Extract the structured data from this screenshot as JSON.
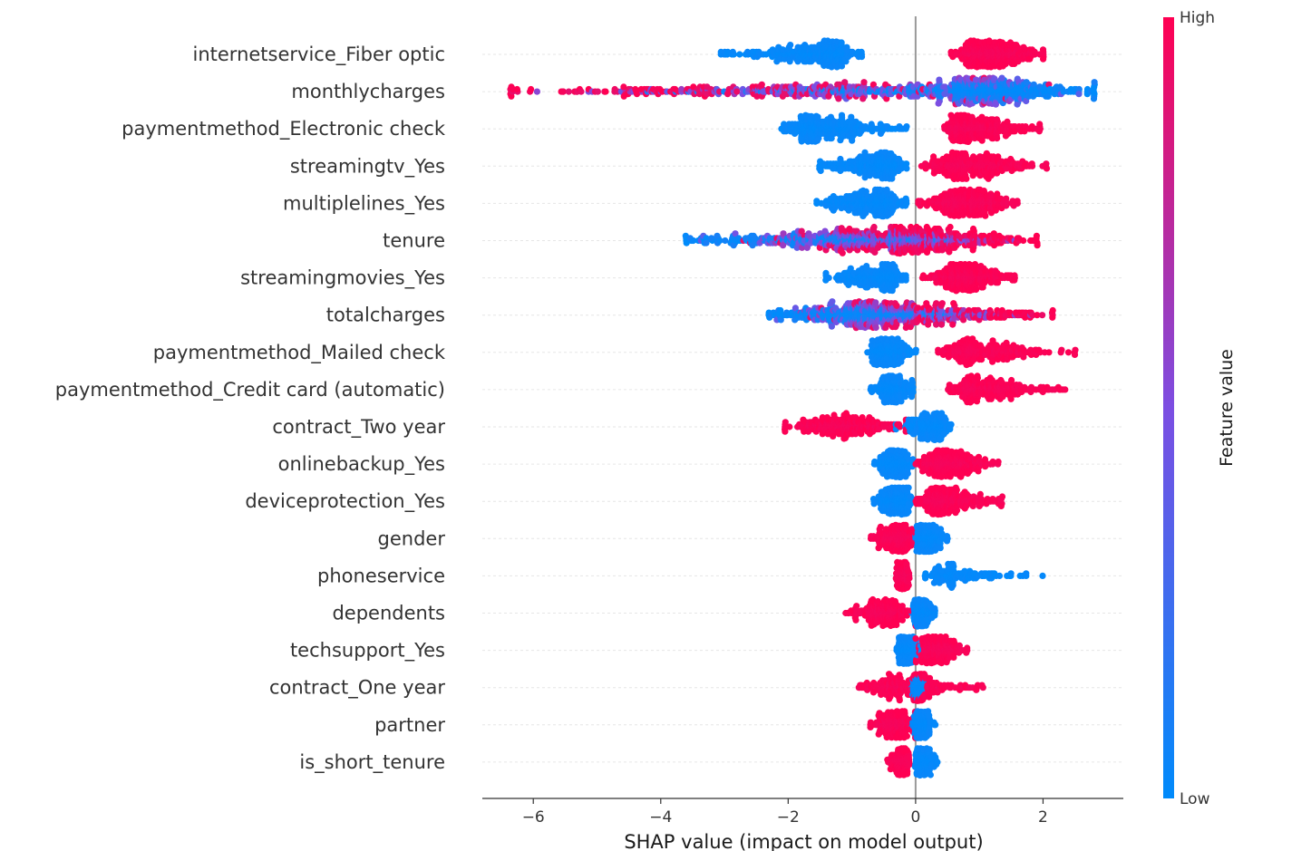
{
  "chart_data": {
    "type": "scatter",
    "subtype": "shap-beeswarm",
    "xlabel": "SHAP value (impact on model output)",
    "xlim": [
      -6.8,
      3.26
    ],
    "xticks": [
      -6,
      -4,
      -2,
      0,
      2
    ],
    "xtick_labels": [
      "−6",
      "−4",
      "−2",
      "0",
      "2"
    ],
    "zero_line": 0,
    "grid": false,
    "colorbar": {
      "title": "Feature value",
      "high_label": "High",
      "low_label": "Low",
      "low_color": "#008bfb",
      "high_color": "#ff0052"
    },
    "features": [
      {
        "name": "internetservice_Fiber optic",
        "type": "binary",
        "low": {
          "min": -3.05,
          "max": -0.85,
          "peak": -1.45,
          "n": 300
        },
        "high": {
          "min": 0.55,
          "max": 2.0,
          "peak": 1.15,
          "n": 330
        }
      },
      {
        "name": "monthlycharges",
        "type": "continuous",
        "min": -6.35,
        "max": 2.8,
        "peak": 0.6,
        "corr": "negative",
        "n": 950
      },
      {
        "name": "paymentmethod_Electronic check",
        "type": "binary",
        "low": {
          "min": -2.1,
          "max": -0.15,
          "peak": -1.5,
          "n": 300
        },
        "high": {
          "min": 0.45,
          "max": 1.95,
          "peak": 0.85,
          "n": 310
        }
      },
      {
        "name": "streamingtv_Yes",
        "type": "binary",
        "low": {
          "min": -1.5,
          "max": -0.15,
          "peak": -0.55,
          "n": 260
        },
        "high": {
          "min": 0.1,
          "max": 2.05,
          "peak": 0.8,
          "n": 330
        }
      },
      {
        "name": "multiplelines_Yes",
        "type": "binary",
        "low": {
          "min": -1.55,
          "max": -0.15,
          "peak": -0.65,
          "n": 300
        },
        "high": {
          "min": 0.05,
          "max": 1.6,
          "peak": 0.8,
          "n": 320
        }
      },
      {
        "name": "tenure",
        "type": "continuous",
        "min": -3.6,
        "max": 1.9,
        "peak": -0.35,
        "corr": "positive",
        "n": 800
      },
      {
        "name": "streamingmovies_Yes",
        "type": "binary",
        "low": {
          "min": -1.4,
          "max": -0.15,
          "peak": -0.55,
          "n": 240
        },
        "high": {
          "min": 0.1,
          "max": 1.55,
          "peak": 0.8,
          "n": 300
        }
      },
      {
        "name": "totalcharges",
        "type": "continuous",
        "min": -2.3,
        "max": 2.15,
        "peak": -0.5,
        "corr": "positive",
        "n": 700
      },
      {
        "name": "paymentmethod_Mailed check",
        "type": "binary",
        "low": {
          "min": -0.75,
          "max": 0.0,
          "peak": -0.45,
          "n": 200
        },
        "high": {
          "min": 0.35,
          "max": 2.5,
          "peak": 0.95,
          "n": 260
        }
      },
      {
        "name": "paymentmethod_Credit card (automatic)",
        "type": "binary",
        "low": {
          "min": -0.7,
          "max": -0.05,
          "peak": -0.35,
          "n": 200
        },
        "high": {
          "min": 0.5,
          "max": 2.35,
          "peak": 1.0,
          "n": 260
        }
      },
      {
        "name": "contract_Two year",
        "type": "binary",
        "low": {
          "min": -0.3,
          "max": 0.55,
          "peak": 0.28,
          "n": 230
        },
        "high": {
          "min": -2.05,
          "max": -0.15,
          "peak": -1.1,
          "n": 260
        }
      },
      {
        "name": "onlinebackup_Yes",
        "type": "binary",
        "low": {
          "min": -0.65,
          "max": -0.05,
          "peak": -0.3,
          "n": 230
        },
        "high": {
          "min": 0.0,
          "max": 1.3,
          "peak": 0.5,
          "n": 300
        }
      },
      {
        "name": "deviceprotection_Yes",
        "type": "binary",
        "low": {
          "min": -0.65,
          "max": -0.05,
          "peak": -0.25,
          "n": 230
        },
        "high": {
          "min": 0.0,
          "max": 1.35,
          "peak": 0.45,
          "n": 300
        }
      },
      {
        "name": "gender",
        "type": "binary",
        "low": {
          "min": 0.0,
          "max": 0.5,
          "peak": 0.15,
          "n": 220
        },
        "high": {
          "min": -0.7,
          "max": 0.0,
          "peak": -0.25,
          "n": 220
        }
      },
      {
        "name": "phoneservice",
        "type": "binary",
        "low": {
          "min": 0.15,
          "max": 2.0,
          "peak": 0.6,
          "n": 130
        },
        "high": {
          "min": -0.3,
          "max": -0.1,
          "peak": -0.2,
          "n": 150
        }
      },
      {
        "name": "dependents",
        "type": "binary",
        "low": {
          "min": -0.05,
          "max": 0.3,
          "peak": 0.05,
          "n": 200
        },
        "high": {
          "min": -1.1,
          "max": 0.0,
          "peak": -0.5,
          "n": 200
        }
      },
      {
        "name": "techsupport_Yes",
        "type": "binary",
        "low": {
          "min": -0.3,
          "max": 0.1,
          "peak": -0.15,
          "n": 220
        },
        "high": {
          "min": 0.0,
          "max": 0.8,
          "peak": 0.3,
          "n": 220
        }
      },
      {
        "name": "contract_One year",
        "type": "binary",
        "low": {
          "min": -0.05,
          "max": 0.15,
          "peak": 0.05,
          "n": 150
        },
        "high": {
          "min": -0.9,
          "max": 1.05,
          "peak": -0.2,
          "n": 230
        }
      },
      {
        "name": "partner",
        "type": "binary",
        "low": {
          "min": -0.05,
          "max": 0.3,
          "peak": 0.05,
          "n": 200
        },
        "high": {
          "min": -0.7,
          "max": 0.0,
          "peak": -0.3,
          "n": 200
        }
      },
      {
        "name": "is_short_tenure",
        "type": "binary",
        "low": {
          "min": 0.0,
          "max": 0.35,
          "peak": 0.1,
          "n": 180
        },
        "high": {
          "min": -0.45,
          "max": -0.1,
          "peak": -0.2,
          "n": 160
        }
      }
    ]
  }
}
